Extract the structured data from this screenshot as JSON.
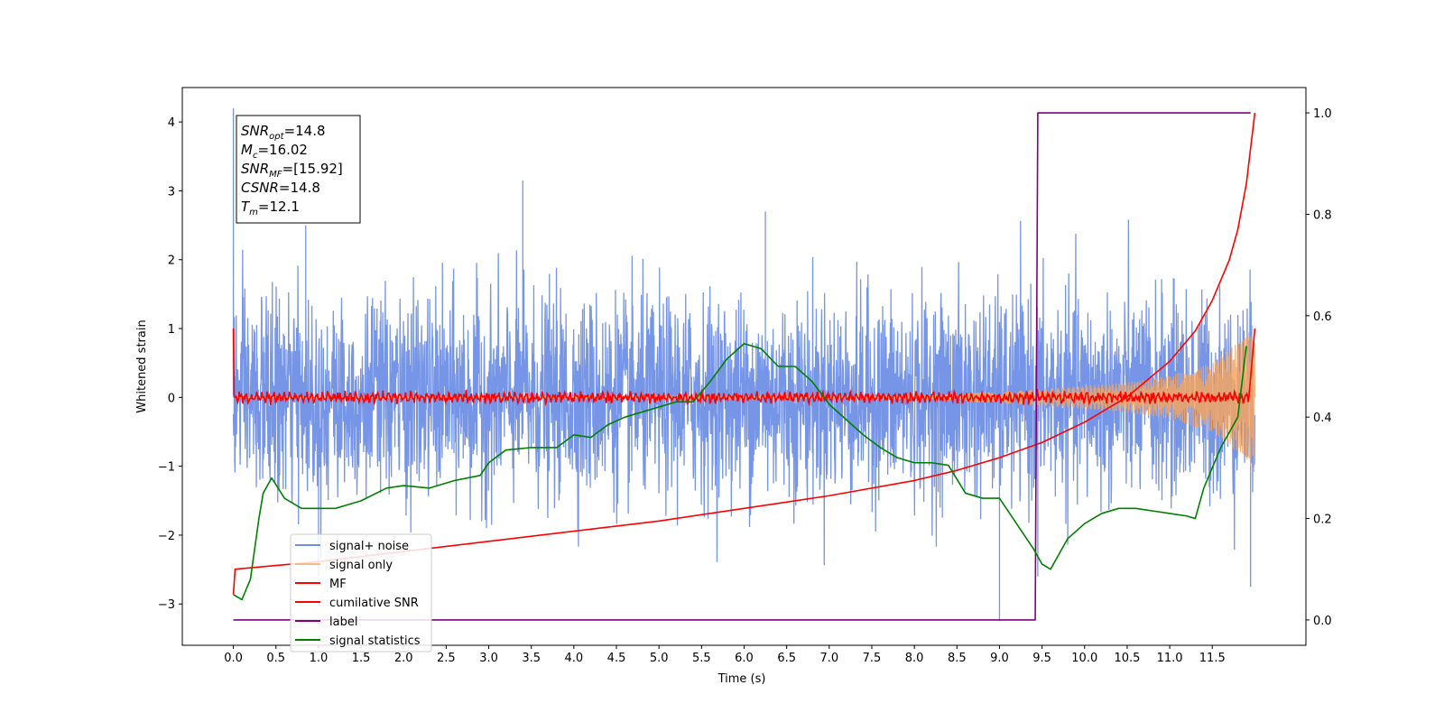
{
  "chart_data": {
    "type": "line",
    "xlabel": "Time (s)",
    "ylabel": "Whitened strain",
    "xlim": [
      -0.6,
      12.6
    ],
    "ylim": [
      -3.6,
      4.5
    ],
    "y2lim": [
      -0.05,
      1.05
    ],
    "xticks": [
      0.0,
      0.5,
      1.0,
      1.5,
      2.0,
      2.5,
      3.0,
      3.5,
      4.0,
      4.5,
      5.0,
      5.5,
      6.0,
      6.5,
      7.0,
      7.5,
      8.0,
      8.5,
      9.0,
      9.5,
      10.0,
      10.5,
      11.0,
      11.5
    ],
    "xtick_labels": [
      "0.0",
      "0.5",
      "1.0",
      "1.5",
      "2.0",
      "2.5",
      "3.0",
      "3.5",
      "4.0",
      "4.5",
      "5.0",
      "5.5",
      "6.0",
      "6.5",
      "7.0",
      "7.5",
      "8.0",
      "8.5",
      "9.0",
      "9.5",
      "10.0",
      "10.5",
      "11.0",
      "11.5"
    ],
    "yticks": [
      -3,
      -2,
      -1,
      0,
      1,
      2,
      3,
      4
    ],
    "ytick_labels": [
      "−3",
      "−2",
      "−1",
      "0",
      "1",
      "2",
      "3",
      "4"
    ],
    "y2ticks": [
      0.0,
      0.2,
      0.4,
      0.6,
      0.8,
      1.0
    ],
    "y2tick_labels": [
      "0.0",
      "0.2",
      "0.4",
      "0.6",
      "0.8",
      "1.0"
    ],
    "grid": false,
    "legend_position": "lower-left",
    "info_box": [
      {
        "symbol": "SNR",
        "sub": "opt",
        "value": "=14.8"
      },
      {
        "symbol": "M",
        "sub": "c",
        "value": "=16.02"
      },
      {
        "symbol": "SNR",
        "sub": "MF",
        "value": "=[15.92]"
      },
      {
        "symbol": "CSNR",
        "sub": "",
        "value": "=14.8"
      },
      {
        "symbol": "T",
        "sub": "m",
        "value": "=12.1"
      }
    ],
    "series": [
      {
        "name": "signal+ noise",
        "color": "#6f8fe6",
        "axis": "left",
        "kind": "noise",
        "amplitude_sigma": 1.0,
        "x_range": [
          0.0,
          12.0
        ],
        "peaks": [
          [
            0.0,
            4.2
          ],
          [
            3.4,
            3.15
          ],
          [
            9.0,
            -3.25
          ],
          [
            11.95,
            -2.75
          ],
          [
            0.85,
            2.5
          ],
          [
            6.25,
            2.7
          ],
          [
            1.0,
            -2.6
          ],
          [
            9.45,
            -2.6
          ]
        ]
      },
      {
        "name": "signal only",
        "color": "#f4a460",
        "axis": "left",
        "kind": "chirp",
        "envelope": [
          [
            0.0,
            0.0
          ],
          [
            7.5,
            0.02
          ],
          [
            8.5,
            0.05
          ],
          [
            9.5,
            0.12
          ],
          [
            10.5,
            0.22
          ],
          [
            11.0,
            0.32
          ],
          [
            11.5,
            0.5
          ],
          [
            11.8,
            0.8
          ],
          [
            12.0,
            1.1
          ]
        ]
      },
      {
        "name": "MF",
        "color": "#ff0000",
        "axis": "left",
        "kind": "mf",
        "start_value": 1.0,
        "baseline_amplitude": 0.07
      },
      {
        "name": "cumilative SNR",
        "color": "#ff0000",
        "axis": "right",
        "x": [
          0.0,
          0.02,
          1.0,
          2.0,
          3.0,
          4.0,
          5.0,
          6.0,
          7.0,
          8.0,
          8.5,
          9.0,
          9.5,
          10.0,
          10.5,
          11.0,
          11.3,
          11.5,
          11.7,
          11.8,
          11.9,
          12.0
        ],
        "y": [
          0.05,
          0.1,
          0.115,
          0.135,
          0.155,
          0.175,
          0.195,
          0.22,
          0.245,
          0.275,
          0.295,
          0.32,
          0.35,
          0.39,
          0.44,
          0.51,
          0.57,
          0.63,
          0.71,
          0.77,
          0.86,
          1.0
        ]
      },
      {
        "name": "label",
        "color": "#800080",
        "axis": "right",
        "x": [
          0.0,
          9.42,
          9.45,
          11.95
        ],
        "y": [
          0.0,
          0.0,
          1.0,
          1.0
        ]
      },
      {
        "name": "signal statistics",
        "color": "#008000",
        "axis": "right",
        "x": [
          0.0,
          0.1,
          0.2,
          0.3,
          0.35,
          0.45,
          0.6,
          0.8,
          1.0,
          1.2,
          1.5,
          1.8,
          2.0,
          2.3,
          2.6,
          2.9,
          3.0,
          3.2,
          3.5,
          3.8,
          4.0,
          4.2,
          4.4,
          4.6,
          4.8,
          5.0,
          5.2,
          5.4,
          5.6,
          5.8,
          6.0,
          6.2,
          6.4,
          6.6,
          6.8,
          7.0,
          7.2,
          7.4,
          7.6,
          7.8,
          8.0,
          8.2,
          8.4,
          8.6,
          8.8,
          9.0,
          9.2,
          9.4,
          9.5,
          9.6,
          9.8,
          10.0,
          10.2,
          10.4,
          10.6,
          10.8,
          11.0,
          11.2,
          11.3,
          11.4,
          11.6,
          11.8,
          11.9
        ],
        "y": [
          0.05,
          0.04,
          0.08,
          0.2,
          0.25,
          0.28,
          0.24,
          0.22,
          0.22,
          0.22,
          0.235,
          0.26,
          0.265,
          0.26,
          0.275,
          0.285,
          0.31,
          0.335,
          0.34,
          0.34,
          0.365,
          0.36,
          0.385,
          0.4,
          0.41,
          0.42,
          0.43,
          0.43,
          0.47,
          0.515,
          0.545,
          0.535,
          0.5,
          0.5,
          0.47,
          0.425,
          0.395,
          0.365,
          0.34,
          0.32,
          0.31,
          0.31,
          0.305,
          0.25,
          0.24,
          0.24,
          0.19,
          0.14,
          0.11,
          0.1,
          0.16,
          0.19,
          0.21,
          0.22,
          0.22,
          0.215,
          0.21,
          0.205,
          0.2,
          0.26,
          0.34,
          0.4,
          0.54
        ]
      }
    ]
  }
}
